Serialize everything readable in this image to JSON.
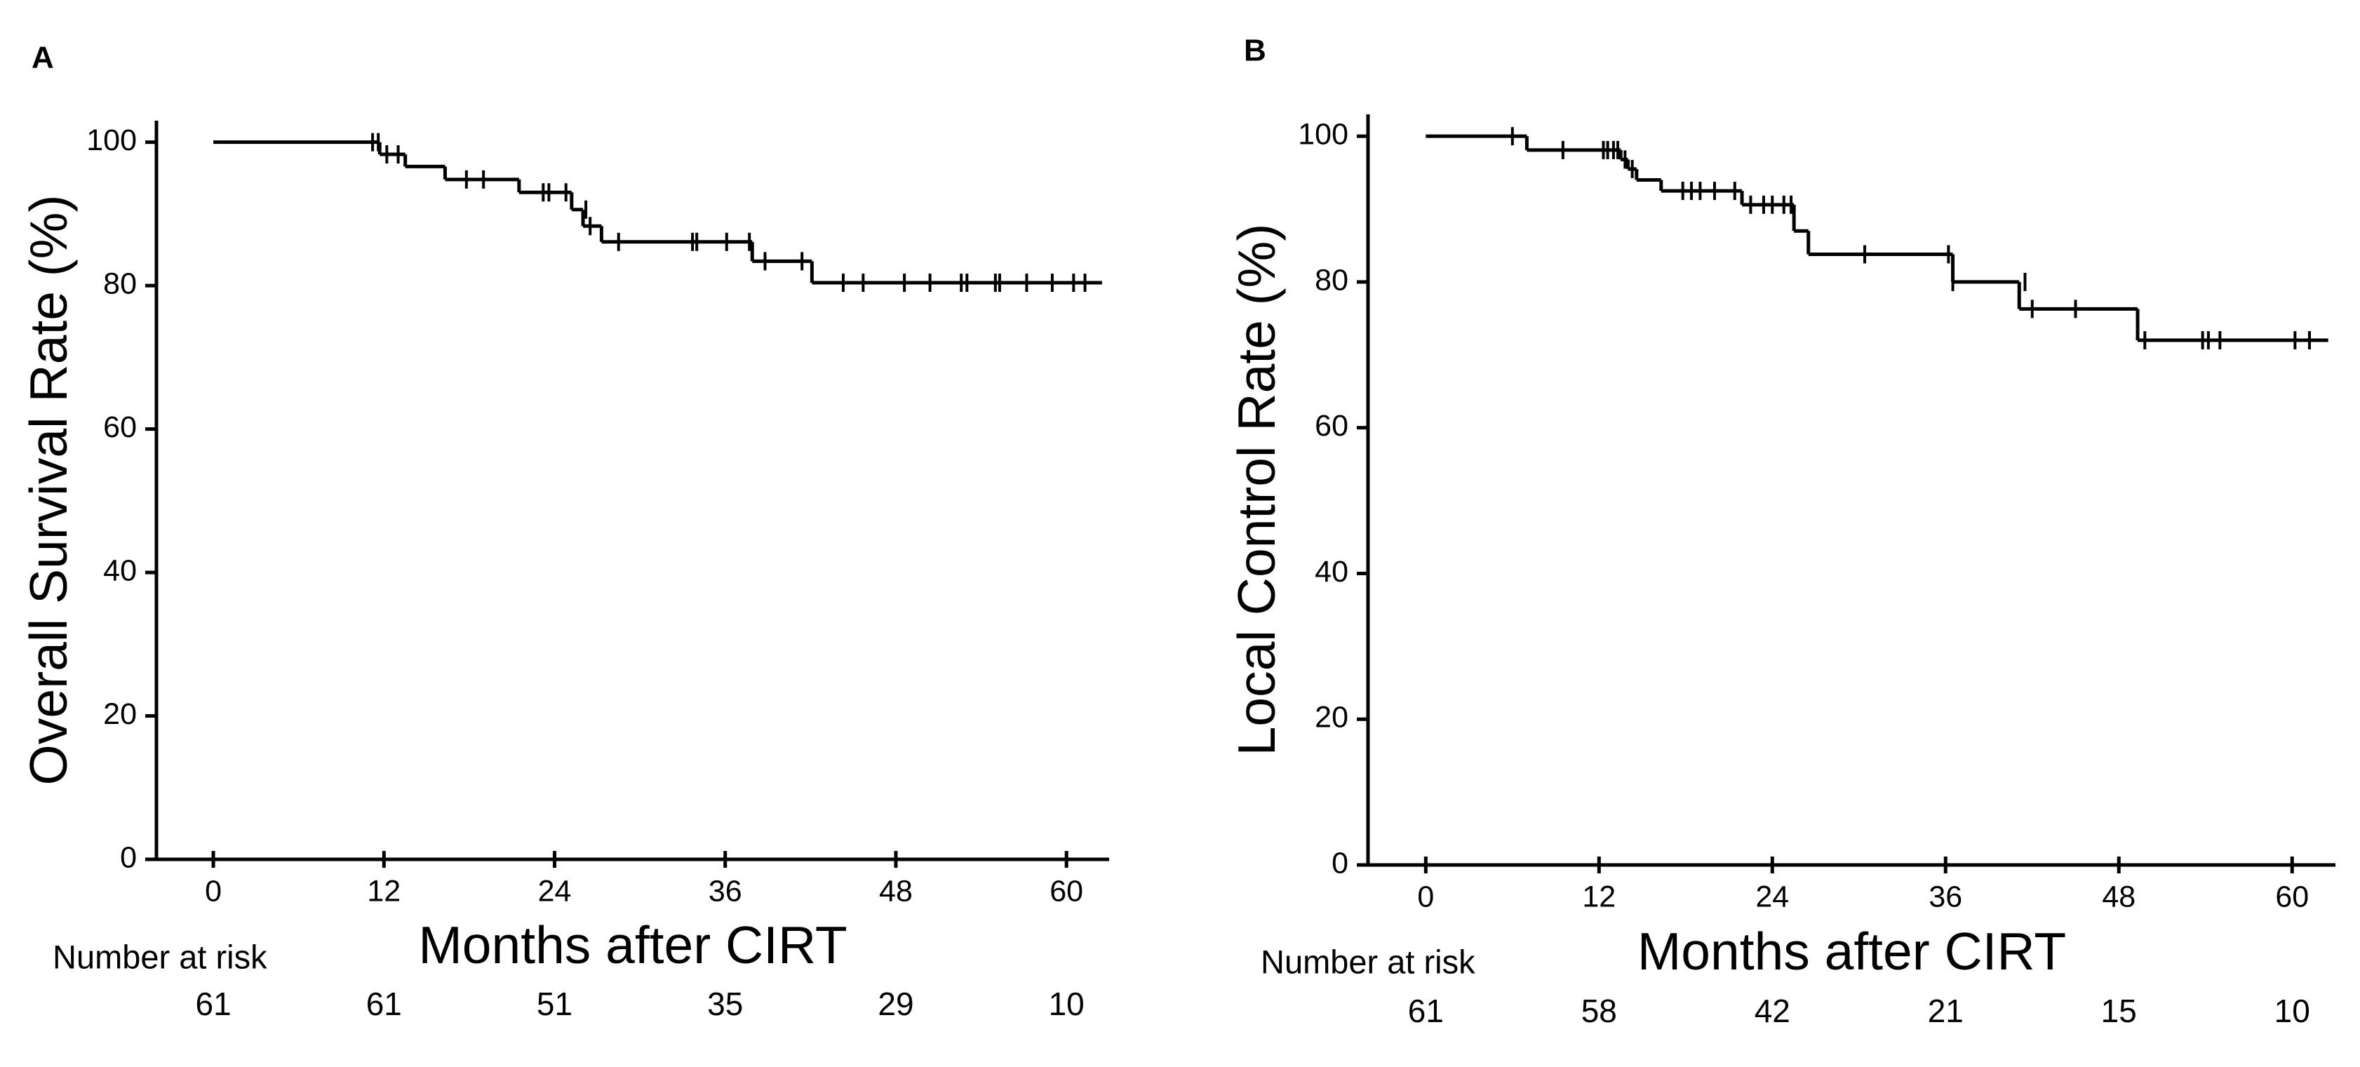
{
  "chart_data": [
    {
      "type": "step",
      "panel": "A",
      "y_label": "Overall Survival Rate (%)",
      "x_label": "Months after CIRT",
      "risk_label": "Number at risk",
      "risk_values": [
        61,
        61,
        51,
        35,
        29,
        10
      ],
      "color": "#000000",
      "xlim": [
        -4,
        63
      ],
      "ylim": [
        0,
        103
      ],
      "xticks": [
        0,
        12,
        24,
        36,
        48,
        60
      ],
      "yticks": [
        0,
        20,
        40,
        60,
        80,
        100
      ],
      "x": [
        0,
        11.7,
        13.5,
        16.3,
        21.5,
        25.2,
        26.0,
        27.3,
        37.9,
        42.1,
        62.5
      ],
      "y": [
        100,
        98.3,
        96.6,
        94.8,
        93.0,
        90.6,
        88.3,
        86.1,
        83.4,
        80.4,
        80.4
      ],
      "censor_x": [
        11.2,
        11.6,
        12.2,
        13.0,
        17.8,
        19.0,
        23.2,
        23.6,
        24.8,
        26.2,
        26.5,
        28.5,
        33.7,
        34.0,
        36.1,
        37.7,
        38.8,
        41.4,
        44.3,
        45.7,
        48.6,
        50.4,
        52.6,
        53.0,
        55.0,
        55.3,
        57.2,
        59.0,
        60.5,
        61.3
      ],
      "censor_y": [
        100,
        100,
        98.3,
        98.3,
        94.8,
        94.8,
        93.0,
        93.0,
        93.0,
        90.6,
        88.3,
        86.1,
        86.1,
        86.1,
        86.1,
        86.1,
        83.4,
        83.4,
        80.4,
        80.4,
        80.4,
        80.4,
        80.4,
        80.4,
        80.4,
        80.4,
        80.4,
        80.4,
        80.4,
        80.4
      ]
    },
    {
      "type": "step",
      "panel": "B",
      "y_label": "Local Control Rate (%)",
      "x_label": "Months after CIRT",
      "risk_label": "Number at risk",
      "risk_values": [
        61,
        58,
        42,
        21,
        15,
        10
      ],
      "color": "#000000",
      "xlim": [
        -4,
        63
      ],
      "ylim": [
        0,
        103
      ],
      "xticks": [
        0,
        12,
        24,
        36,
        48,
        60
      ],
      "yticks": [
        0,
        20,
        40,
        60,
        80,
        100
      ],
      "x": [
        0,
        7.0,
        13.5,
        14.0,
        14.6,
        16.3,
        21.9,
        25.5,
        26.5,
        36.5,
        41.1,
        49.3,
        62.5
      ],
      "y": [
        100,
        98.1,
        96.8,
        95.5,
        94.0,
        92.5,
        90.6,
        87.0,
        83.8,
        80.0,
        76.3,
        72.0,
        72.0
      ],
      "censor_x": [
        6.0,
        9.5,
        12.3,
        12.6,
        13.0,
        13.3,
        13.8,
        14.3,
        17.8,
        18.4,
        19.0,
        20.0,
        21.4,
        22.5,
        23.4,
        24.0,
        24.8,
        25.3,
        30.4,
        36.2,
        36.5,
        41.5,
        42.0,
        45.0,
        49.8,
        53.8,
        54.2,
        55.0,
        60.2,
        61.2
      ],
      "censor_y": [
        100,
        98.1,
        98.1,
        98.1,
        98.1,
        98.1,
        96.8,
        95.5,
        92.5,
        92.5,
        92.5,
        92.5,
        92.5,
        90.6,
        90.6,
        90.6,
        90.6,
        90.6,
        83.8,
        83.8,
        80.0,
        80.0,
        76.3,
        76.3,
        72.0,
        72.0,
        72.0,
        72.0,
        72.0,
        72.0
      ]
    }
  ]
}
